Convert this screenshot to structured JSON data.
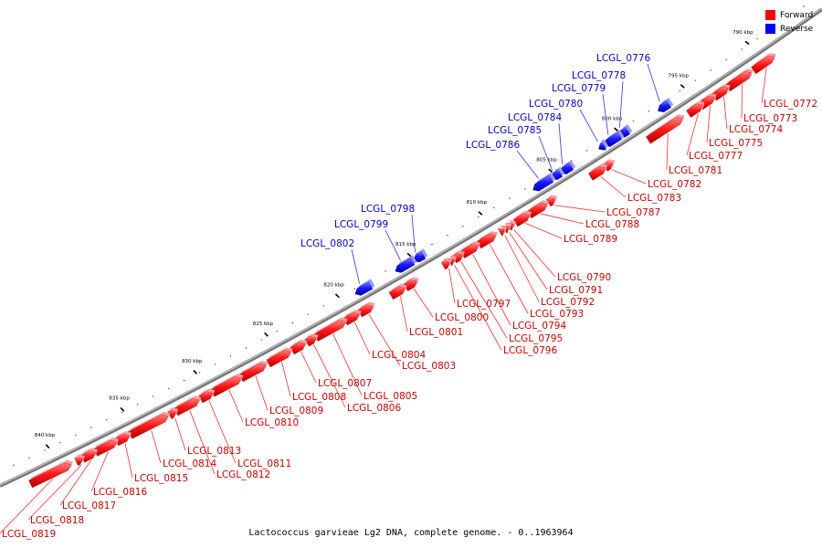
{
  "caption": "Lactococcus garvieae Lg2 DNA, complete genome. - 0..1963964",
  "legend": [
    {
      "label": "Forward",
      "color": "#ff0000"
    },
    {
      "label": "Reverse",
      "color": "#0000ff"
    }
  ],
  "colors": {
    "forward": "#ff2020",
    "reverse": "#1a1aff",
    "backbone": "#888888",
    "label_forward": "#cc0000",
    "label_reverse": "#0000cc"
  },
  "ticks": [
    "790 kbp",
    "795 kbp",
    "800 kbp",
    "805 kbp",
    "810 kbp",
    "815 kbp",
    "820 kbp",
    "825 kbp",
    "830 kbp",
    "835 kbp",
    "840 kbp"
  ],
  "genes": [
    {
      "id": "LCGL_0772",
      "strand": "forward"
    },
    {
      "id": "LCGL_0773",
      "strand": "forward"
    },
    {
      "id": "LCGL_0774",
      "strand": "forward"
    },
    {
      "id": "LCGL_0775",
      "strand": "forward"
    },
    {
      "id": "LCGL_0776",
      "strand": "reverse"
    },
    {
      "id": "LCGL_0777",
      "strand": "forward"
    },
    {
      "id": "LCGL_0778",
      "strand": "reverse"
    },
    {
      "id": "LCGL_0779",
      "strand": "reverse"
    },
    {
      "id": "LCGL_0780",
      "strand": "reverse"
    },
    {
      "id": "LCGL_0781",
      "strand": "forward"
    },
    {
      "id": "LCGL_0782",
      "strand": "forward"
    },
    {
      "id": "LCGL_0783",
      "strand": "forward"
    },
    {
      "id": "LCGL_0784",
      "strand": "reverse"
    },
    {
      "id": "LCGL_0785",
      "strand": "reverse"
    },
    {
      "id": "LCGL_0786",
      "strand": "reverse"
    },
    {
      "id": "LCGL_0787",
      "strand": "forward"
    },
    {
      "id": "LCGL_0788",
      "strand": "forward"
    },
    {
      "id": "LCGL_0789",
      "strand": "forward"
    },
    {
      "id": "LCGL_0790",
      "strand": "forward"
    },
    {
      "id": "LCGL_0791",
      "strand": "forward"
    },
    {
      "id": "LCGL_0792",
      "strand": "forward"
    },
    {
      "id": "LCGL_0793",
      "strand": "forward"
    },
    {
      "id": "LCGL_0794",
      "strand": "forward"
    },
    {
      "id": "LCGL_0795",
      "strand": "forward"
    },
    {
      "id": "LCGL_0796",
      "strand": "forward"
    },
    {
      "id": "LCGL_0797",
      "strand": "forward"
    },
    {
      "id": "LCGL_0798",
      "strand": "reverse"
    },
    {
      "id": "LCGL_0799",
      "strand": "reverse"
    },
    {
      "id": "LCGL_0800",
      "strand": "forward"
    },
    {
      "id": "LCGL_0801",
      "strand": "forward"
    },
    {
      "id": "LCGL_0802",
      "strand": "reverse"
    },
    {
      "id": "LCGL_0803",
      "strand": "forward"
    },
    {
      "id": "LCGL_0804",
      "strand": "forward"
    },
    {
      "id": "LCGL_0805",
      "strand": "forward"
    },
    {
      "id": "LCGL_0806",
      "strand": "forward"
    },
    {
      "id": "LCGL_0807",
      "strand": "forward"
    },
    {
      "id": "LCGL_0808",
      "strand": "forward"
    },
    {
      "id": "LCGL_0809",
      "strand": "forward"
    },
    {
      "id": "LCGL_0810",
      "strand": "forward"
    },
    {
      "id": "LCGL_0811",
      "strand": "forward"
    },
    {
      "id": "LCGL_0812",
      "strand": "forward"
    },
    {
      "id": "LCGL_0813",
      "strand": "forward"
    },
    {
      "id": "LCGL_0814",
      "strand": "forward"
    },
    {
      "id": "LCGL_0815",
      "strand": "forward"
    },
    {
      "id": "LCGL_0816",
      "strand": "forward"
    },
    {
      "id": "LCGL_0817",
      "strand": "forward"
    },
    {
      "id": "LCGL_0818",
      "strand": "forward"
    },
    {
      "id": "LCGL_0819",
      "strand": "forward"
    }
  ]
}
